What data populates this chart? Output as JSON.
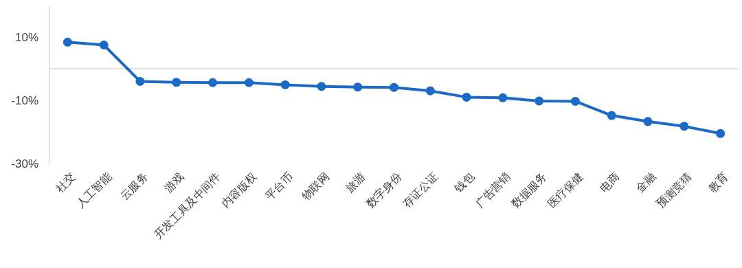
{
  "chart_data": {
    "type": "line",
    "categories": [
      "社交",
      "人工智能",
      "云服务",
      "游戏",
      "开发工具及中间件",
      "内容版权",
      "平台币",
      "物联网",
      "旅游",
      "数字身份",
      "存证公证",
      "钱包",
      "广告营销",
      "数据服务",
      "医疗保健",
      "电商",
      "金融",
      "预测竞猜",
      "教育"
    ],
    "series": [
      {
        "color": "#1a6ac6",
        "values": [
          8.4,
          7.5,
          -4.0,
          -4.3,
          -4.4,
          -4.4,
          -5.1,
          -5.6,
          -5.8,
          -5.9,
          -7.0,
          -9.0,
          -9.2,
          -10.2,
          -10.3,
          -14.8,
          -16.7,
          -18.2,
          -20.5
        ]
      }
    ],
    "ylim": [
      -30,
      20
    ],
    "yticks": [
      {
        "value": 10,
        "label": "10%"
      },
      {
        "value": -10,
        "label": "-10%"
      },
      {
        "value": -30,
        "label": "-30%"
      }
    ],
    "ref_lines": [
      {
        "axis": "y",
        "value": 0,
        "color": "#d9d9d9"
      }
    ],
    "marker": "circle",
    "line_style": "solid"
  }
}
